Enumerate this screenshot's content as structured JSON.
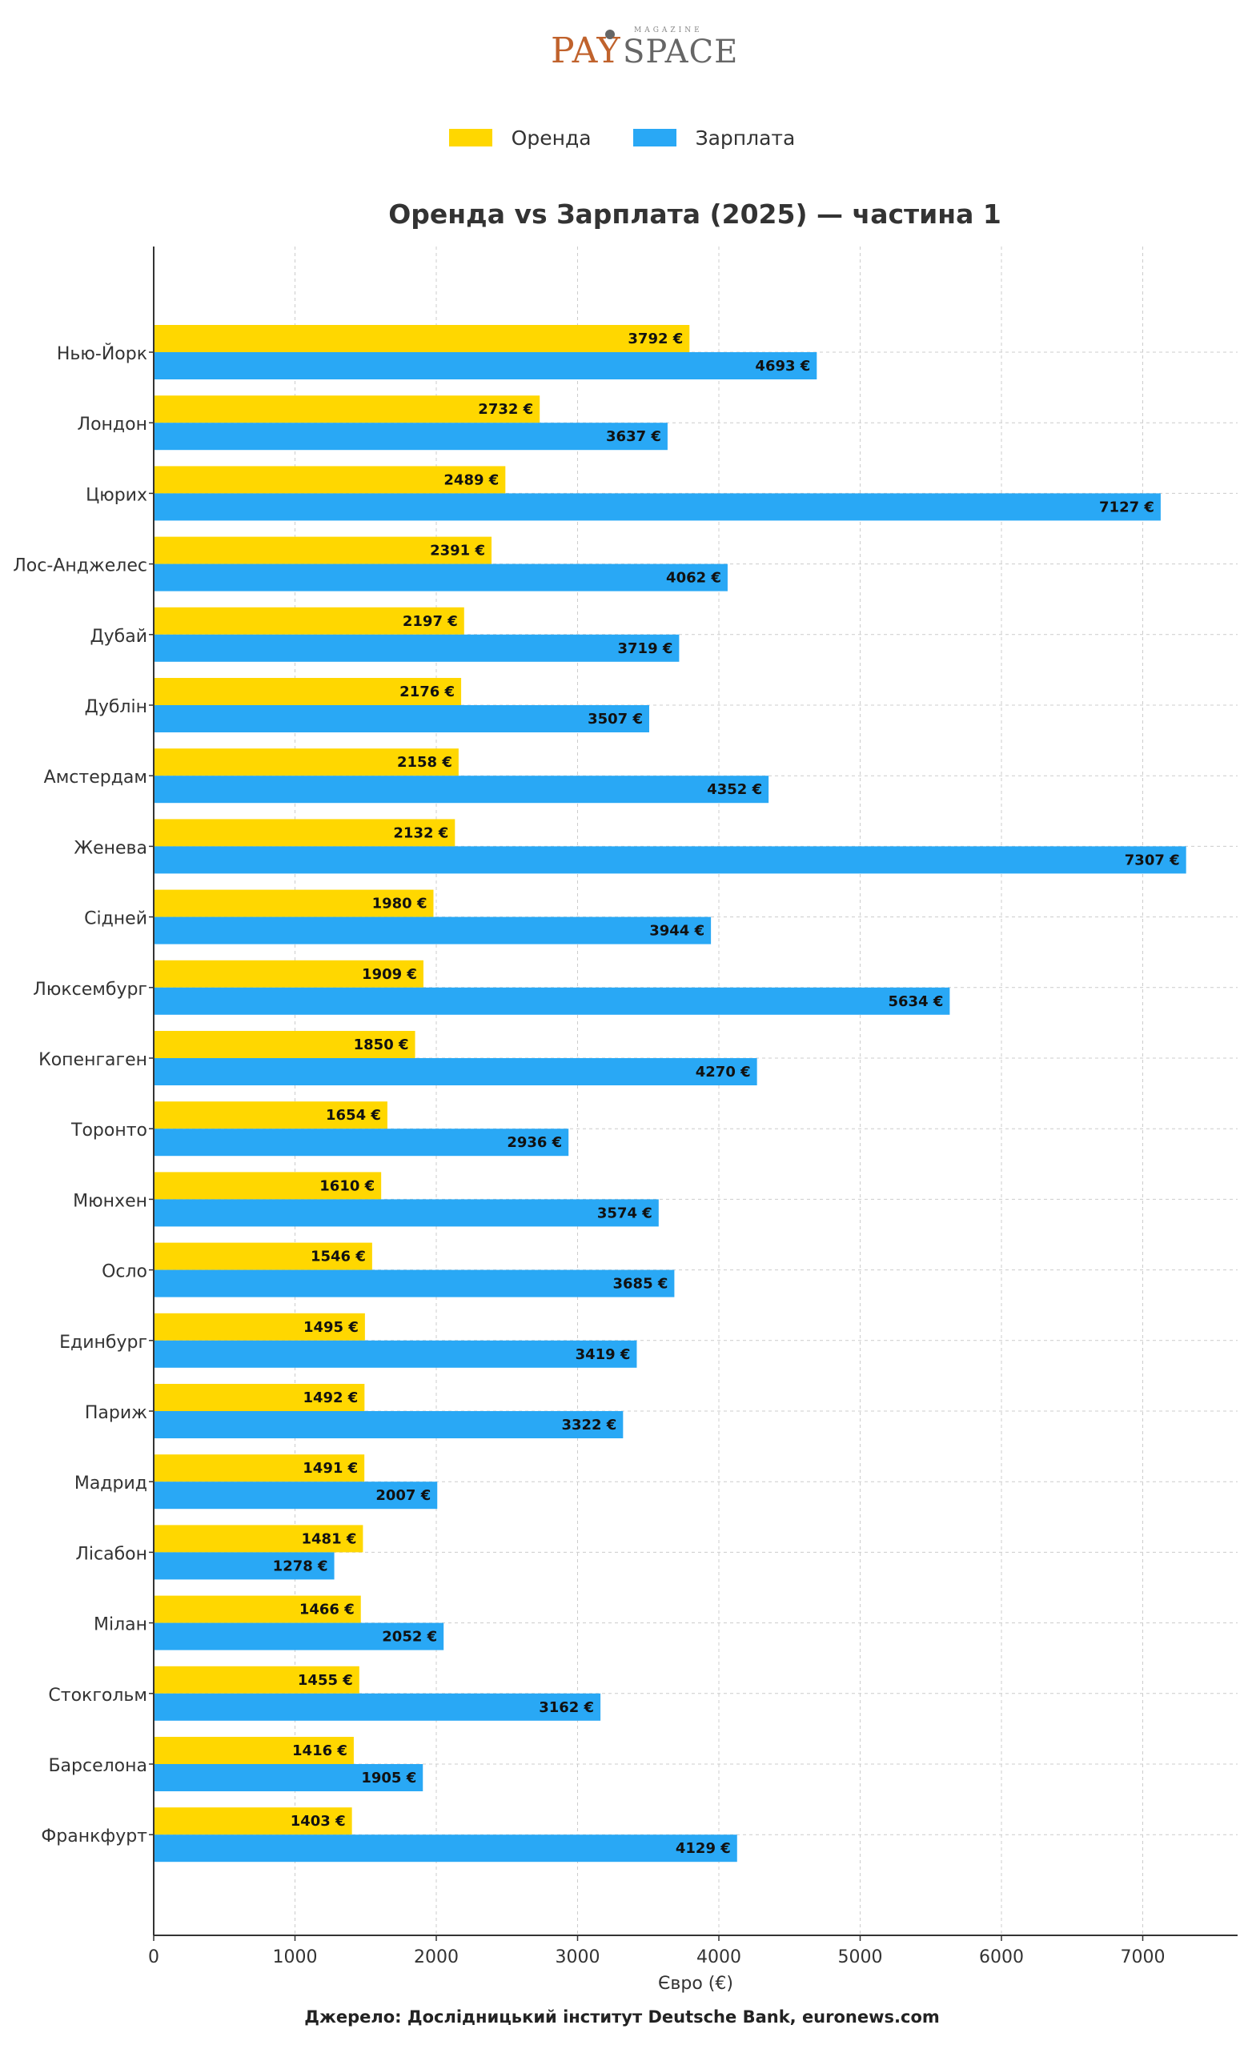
{
  "logo": {
    "pay": "PAY",
    "space": "SPACE",
    "magazine": "MAGAZINE"
  },
  "legend": [
    {
      "label": "Оренда",
      "color": "#FFD700"
    },
    {
      "label": "Зарплата",
      "color": "#29A8F5"
    }
  ],
  "source": "Джерело: Дослідницький інститут Deutsche Bank, euronews.com",
  "chart_data": {
    "type": "bar",
    "orientation": "horizontal",
    "title": "Оренда vs Зарплата (2025) — частина 1",
    "xlabel": "Євро (€)",
    "ylabel": "",
    "xlim": [
      0,
      7600
    ],
    "xticks": [
      "0",
      "1000",
      "2000",
      "3000",
      "4000",
      "5000",
      "6000",
      "7000"
    ],
    "grid": true,
    "legend_position": "top-center",
    "value_suffix": " €",
    "categories": [
      "Нью-Йорк",
      "Лондон",
      "Цюрих",
      "Лос-Анджелес",
      "Дубай",
      "Дублін",
      "Амстердам",
      "Женева",
      "Сідней",
      "Люксембург",
      "Копенгаген",
      "Торонто",
      "Мюнхен",
      "Осло",
      "Единбург",
      "Париж",
      "Мадрид",
      "Лісабон",
      "Мілан",
      "Стокгольм",
      "Барселона",
      "Франкфурт"
    ],
    "series": [
      {
        "name": "Оренда",
        "color": "#FFD700",
        "values": [
          3792,
          2732,
          2489,
          2391,
          2197,
          2176,
          2158,
          2132,
          1980,
          1909,
          1850,
          1654,
          1610,
          1546,
          1495,
          1492,
          1491,
          1481,
          1466,
          1455,
          1416,
          1403
        ]
      },
      {
        "name": "Зарплата",
        "color": "#29A8F5",
        "values": [
          4693,
          3637,
          7127,
          4062,
          3719,
          3507,
          4352,
          7307,
          3944,
          5634,
          4270,
          2936,
          3574,
          3685,
          3419,
          3322,
          2007,
          1278,
          2052,
          3162,
          1905,
          4129
        ]
      }
    ]
  }
}
